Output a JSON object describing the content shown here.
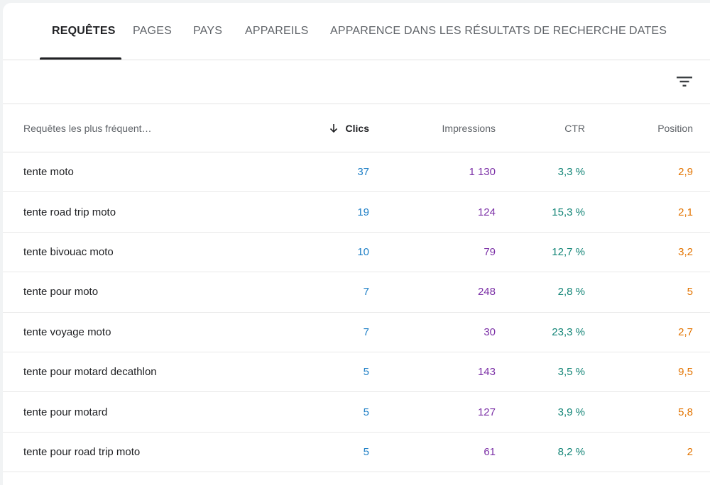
{
  "tabs": [
    {
      "label": "REQUÊTES",
      "active": true
    },
    {
      "label": "PAGES",
      "active": false
    },
    {
      "label": "PAYS",
      "active": false
    },
    {
      "label": "APPAREILS",
      "active": false
    },
    {
      "label": "APPARENCE DANS LES RÉSULTATS DE RECHERCHE",
      "active": false
    },
    {
      "label": "DATES",
      "active": false
    }
  ],
  "filter": {
    "icon": "filter-icon"
  },
  "table": {
    "headers": {
      "query": "Requêtes les plus fréquent…",
      "clicks": "Clics",
      "impressions": "Impressions",
      "ctr": "CTR",
      "position": "Position"
    },
    "sort_icon": "arrow-down-icon",
    "rows": [
      {
        "query": "tente moto",
        "clicks": "37",
        "impressions": "1 130",
        "ctr": "3,3 %",
        "position": "2,9"
      },
      {
        "query": "tente road trip moto",
        "clicks": "19",
        "impressions": "124",
        "ctr": "15,3 %",
        "position": "2,1"
      },
      {
        "query": "tente bivouac moto",
        "clicks": "10",
        "impressions": "79",
        "ctr": "12,7 %",
        "position": "3,2"
      },
      {
        "query": "tente pour moto",
        "clicks": "7",
        "impressions": "248",
        "ctr": "2,8 %",
        "position": "5"
      },
      {
        "query": "tente voyage moto",
        "clicks": "7",
        "impressions": "30",
        "ctr": "23,3 %",
        "position": "2,7"
      },
      {
        "query": "tente pour motard decathlon",
        "clicks": "5",
        "impressions": "143",
        "ctr": "3,5 %",
        "position": "9,5"
      },
      {
        "query": "tente pour motard",
        "clicks": "5",
        "impressions": "127",
        "ctr": "3,9 %",
        "position": "5,8"
      },
      {
        "query": "tente pour road trip moto",
        "clicks": "5",
        "impressions": "61",
        "ctr": "8,2 %",
        "position": "2"
      }
    ]
  },
  "colors": {
    "clicks": "#1e7fc6",
    "impressions": "#7b2fa6",
    "ctr": "#138577",
    "position": "#e37400"
  }
}
